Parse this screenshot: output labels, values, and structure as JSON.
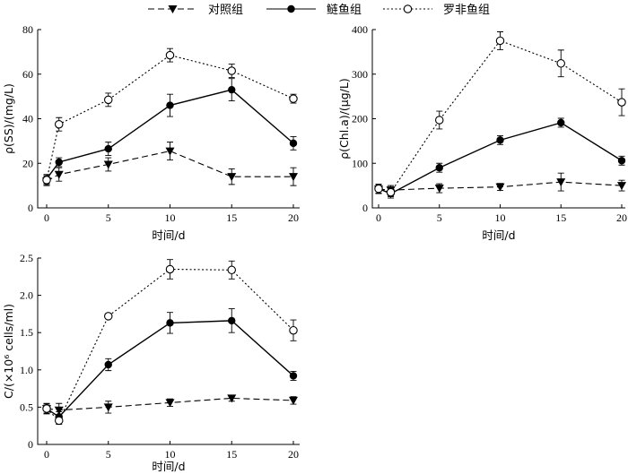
{
  "legend": {
    "items": [
      {
        "label": "对照组",
        "series": "control",
        "line_style": "dashed",
        "marker": "filled-triangle-down"
      },
      {
        "label": "鲢鱼组",
        "series": "silver_carp",
        "line_style": "solid",
        "marker": "filled-circle"
      },
      {
        "label": "罗非鱼组",
        "series": "tilapia",
        "line_style": "dotted",
        "marker": "open-circle"
      }
    ],
    "placement": "top"
  },
  "chart_data": [
    {
      "id": "ss",
      "type": "line",
      "ylabel": "ρ(SS)/(mg/L)",
      "xlabel": "时间/d",
      "x": [
        0,
        1,
        5,
        10,
        15,
        20
      ],
      "xticks": [
        "0",
        "5",
        "10",
        "15",
        "20"
      ],
      "ylim": [
        0,
        80
      ],
      "yticks": [
        "0",
        "20",
        "40",
        "60",
        "80"
      ],
      "grid": false,
      "series": [
        {
          "name": "对照组",
          "values": [
            12,
            15,
            19.5,
            25.5,
            14,
            14
          ],
          "errors": [
            2,
            3,
            3,
            4,
            3.5,
            4
          ]
        },
        {
          "name": "鲢鱼组",
          "values": [
            13,
            20.5,
            26.5,
            46,
            53,
            29
          ],
          "errors": [
            2,
            2,
            3,
            5,
            5,
            3
          ]
        },
        {
          "name": "罗非鱼组",
          "values": [
            12.5,
            37.5,
            48.5,
            68.5,
            61.5,
            49
          ],
          "errors": [
            2,
            3,
            3,
            3,
            3,
            2
          ]
        }
      ]
    },
    {
      "id": "chla",
      "type": "line",
      "ylabel": "ρ(Chl.a)/(μg/L)",
      "xlabel": "时间/d",
      "x": [
        0,
        1,
        5,
        10,
        15,
        20
      ],
      "xticks": [
        "0",
        "5",
        "10",
        "15",
        "20"
      ],
      "ylim": [
        0,
        400
      ],
      "yticks": [
        "0",
        "100",
        "200",
        "300",
        "400"
      ],
      "grid": false,
      "series": [
        {
          "name": "对照组",
          "values": [
            42,
            40,
            44,
            47,
            58,
            50
          ],
          "errors": [
            10,
            10,
            10,
            8,
            20,
            12
          ]
        },
        {
          "name": "鲢鱼组",
          "values": [
            43,
            32,
            90,
            152,
            191,
            106
          ],
          "errors": [
            10,
            10,
            10,
            10,
            10,
            10
          ]
        },
        {
          "name": "罗非鱼组",
          "values": [
            43,
            35,
            197,
            375,
            324,
            237
          ],
          "errors": [
            10,
            10,
            20,
            20,
            30,
            30
          ]
        }
      ]
    },
    {
      "id": "cells",
      "type": "line",
      "ylabel": "C/(×10⁶ cells/ml)",
      "xlabel": "时间/d",
      "x": [
        0,
        1,
        5,
        10,
        15,
        20
      ],
      "xticks": [
        "0",
        "5",
        "10",
        "15",
        "20"
      ],
      "ylim": [
        0,
        2.5
      ],
      "yticks": [
        "0",
        "0.5",
        "1.0",
        "1.5",
        "2.0",
        "2.5"
      ],
      "grid": false,
      "series": [
        {
          "name": "对照组",
          "values": [
            0.48,
            0.46,
            0.5,
            0.56,
            0.62,
            0.59
          ],
          "errors": [
            0.07,
            0.09,
            0.08,
            0.05,
            0.04,
            0.05
          ]
        },
        {
          "name": "鲢鱼组",
          "values": [
            0.48,
            0.37,
            1.07,
            1.63,
            1.66,
            0.92
          ],
          "errors": [
            0.06,
            0.07,
            0.08,
            0.14,
            0.16,
            0.06
          ]
        },
        {
          "name": "罗非鱼组",
          "values": [
            0.48,
            0.32,
            1.72,
            2.35,
            2.34,
            1.53
          ],
          "errors": [
            0.06,
            0.05,
            0.03,
            0.13,
            0.12,
            0.14
          ]
        }
      ]
    }
  ]
}
